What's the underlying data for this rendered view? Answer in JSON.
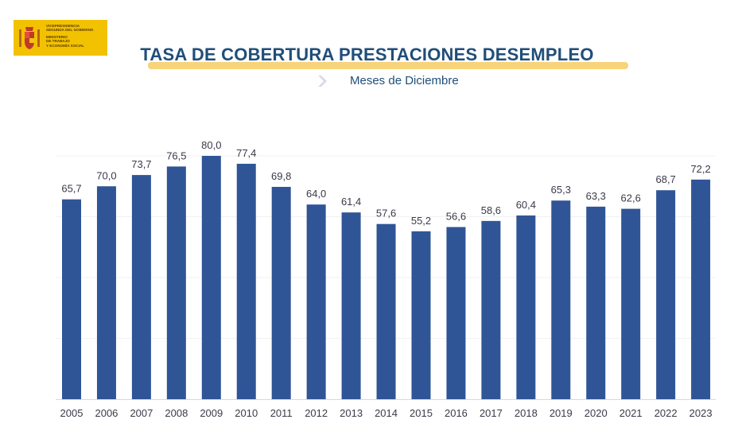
{
  "header": {
    "logo_lines": [
      "VICEPRESIDENCIA",
      "SEGUNDA DEL GOBIERNO",
      "MINISTERIO",
      "DE TRABAJO",
      "Y ECONOMÍA SOCIAL"
    ],
    "title": "TASA DE COBERTURA PRESTACIONES DESEMPLEO",
    "subtitle": "Meses de Diciembre"
  },
  "colors": {
    "bar": "#2f5597",
    "title": "#1f4e79",
    "label": "#3a3a4a",
    "logo_bg": "#f2c200",
    "underline": "#f7d37a"
  },
  "chart_data": {
    "type": "bar",
    "title": "TASA DE COBERTURA PRESTACIONES DESEMPLEO",
    "subtitle": "Meses de Diciembre",
    "categories": [
      "2005",
      "2006",
      "2007",
      "2008",
      "2009",
      "2010",
      "2011",
      "2012",
      "2013",
      "2014",
      "2015",
      "2016",
      "2017",
      "2018",
      "2019",
      "2020",
      "2021",
      "2022",
      "2023"
    ],
    "values": [
      65.7,
      70.0,
      73.7,
      76.5,
      80.0,
      77.4,
      69.8,
      64.0,
      61.4,
      57.6,
      55.2,
      56.6,
      58.6,
      60.4,
      65.3,
      63.3,
      62.6,
      68.7,
      72.2
    ],
    "data_labels": [
      "65,7",
      "70,0",
      "73,7",
      "76,5",
      "80,0",
      "77,4",
      "69,8",
      "64,0",
      "61,4",
      "57,6",
      "55,2",
      "56,6",
      "58,6",
      "60,4",
      "65,3",
      "63,3",
      "62,6",
      "68,7",
      "72,2"
    ],
    "xlabel": "",
    "ylabel": "",
    "ylim": [
      0,
      80
    ],
    "grid": true,
    "legend": "none"
  }
}
